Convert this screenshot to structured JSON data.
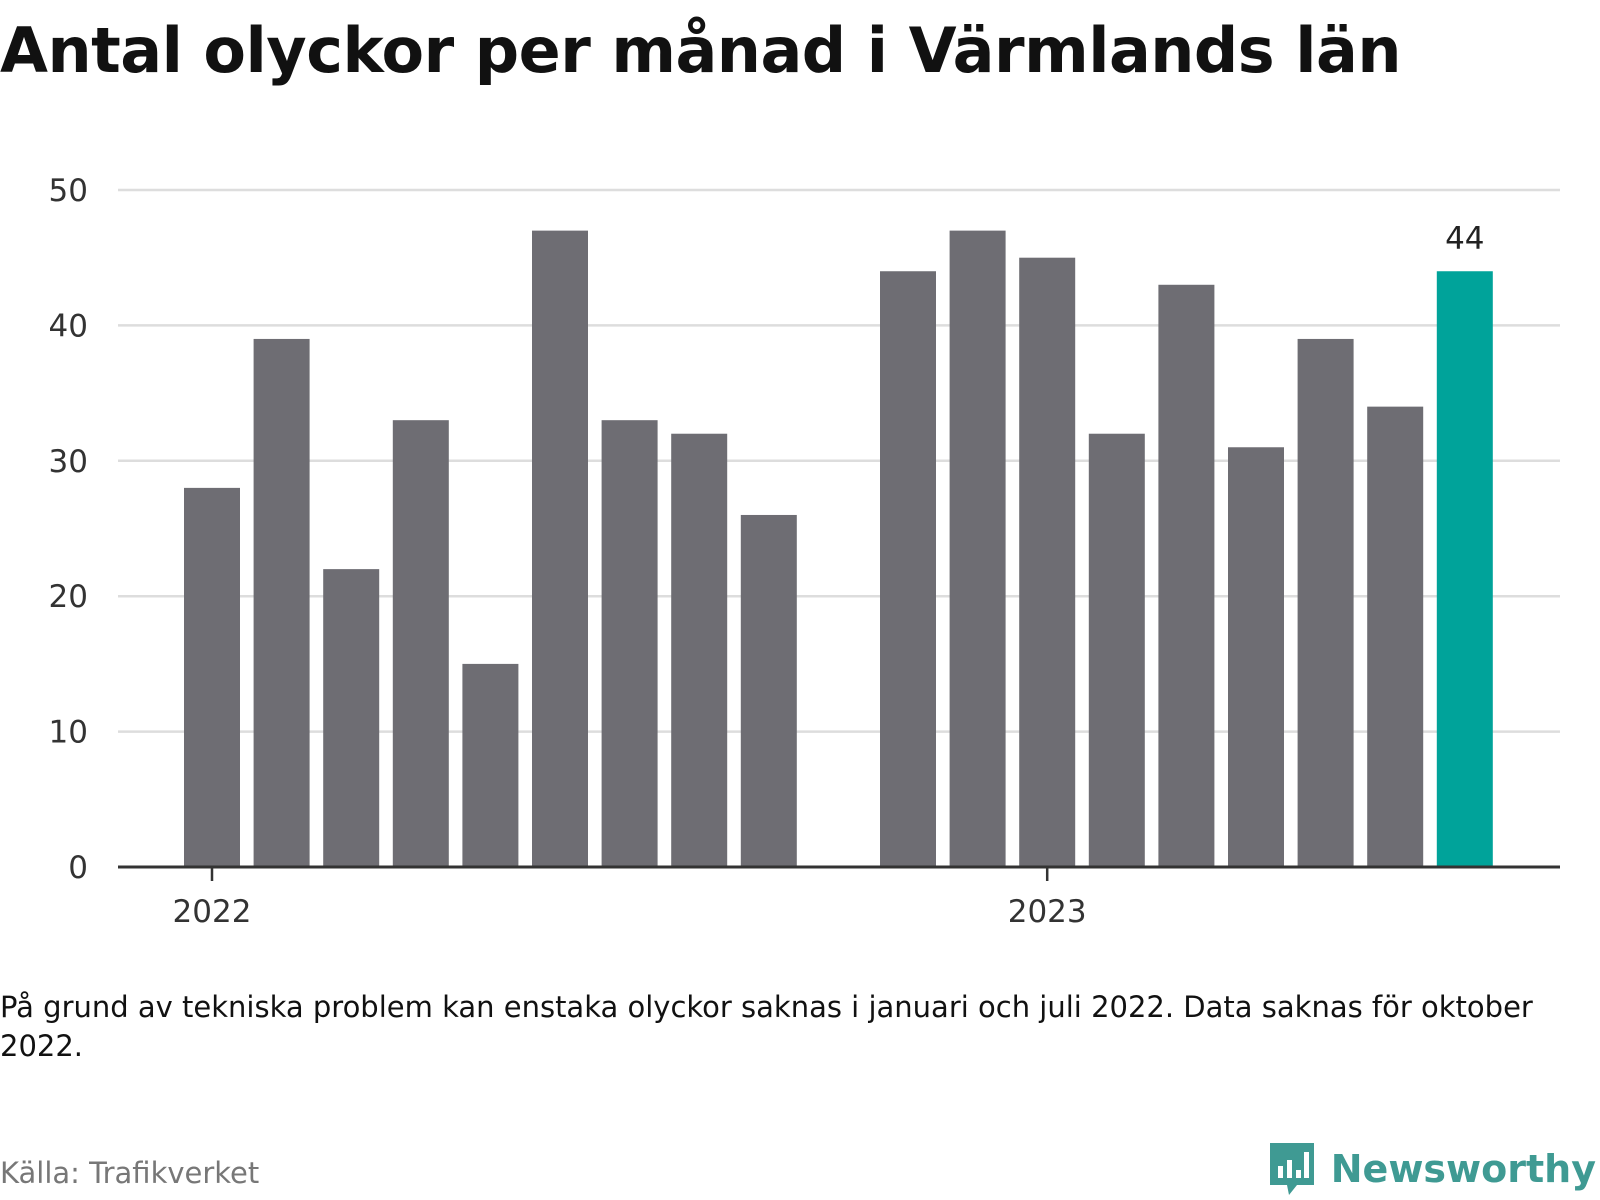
{
  "chart_data": {
    "type": "bar",
    "title": "Antal olyckor per månad i Värmlands län",
    "categories": [
      "2022-01",
      "2022-02",
      "2022-03",
      "2022-04",
      "2022-05",
      "2022-06",
      "2022-07",
      "2022-08",
      "2022-09",
      "2022-10",
      "2022-11",
      "2022-12",
      "2023-01",
      "2023-02",
      "2023-03",
      "2023-04",
      "2023-05",
      "2023-06",
      "2023-07",
      "2023-08"
    ],
    "values": [
      28,
      39,
      22,
      33,
      15,
      47,
      33,
      32,
      26,
      null,
      44,
      47,
      45,
      32,
      43,
      31,
      39,
      34,
      44,
      null
    ],
    "ylim": [
      0,
      50
    ],
    "yticks": [
      0,
      10,
      20,
      30,
      40,
      50
    ],
    "xtick_labels": [
      {
        "label": "2022",
        "category": "2022-01"
      },
      {
        "label": "2023",
        "category": "2023-01"
      }
    ],
    "highlight": {
      "category": "2023-07",
      "value_label": "44"
    },
    "grid": true,
    "legend": "none"
  },
  "colors": {
    "bar": "#6e6d73",
    "highlight": "#00a39a",
    "grid": "#dddddd",
    "axis": "#333333"
  },
  "note": "På grund av tekniska problem kan enstaka olyckor saknas i januari och juli 2022. Data saknas för oktober 2022.",
  "source": "Källa: Trafikverket",
  "brand": {
    "name": "Newsworthy",
    "icon": "bar-chart-speech-bubble-icon"
  }
}
